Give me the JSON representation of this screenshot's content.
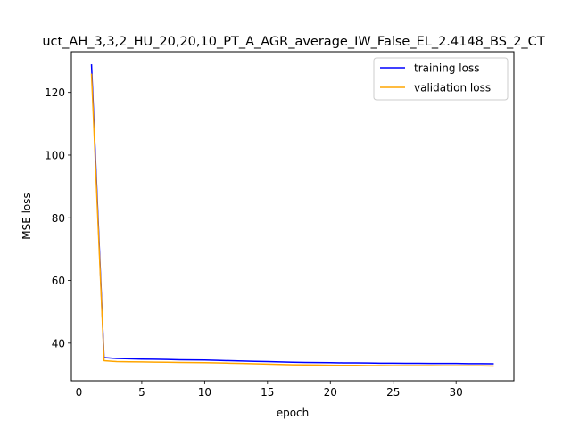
{
  "chart_data": {
    "type": "line",
    "title": "uct_AH_3,3,2_HU_20,20,10_PT_A_AGR_average_IW_False_EL_2.4148_BS_2_CT",
    "xlabel": "epoch",
    "ylabel": "MSE loss",
    "xlim": [
      -0.6,
      34.6
    ],
    "ylim": [
      28.0,
      133.0
    ],
    "xticks": [
      0,
      5,
      10,
      15,
      20,
      25,
      30
    ],
    "yticks": [
      40,
      60,
      80,
      100,
      120
    ],
    "grid": false,
    "legend_position": "top-right",
    "x": [
      1,
      2,
      3,
      4,
      5,
      6,
      7,
      8,
      9,
      10,
      11,
      12,
      13,
      14,
      15,
      16,
      17,
      18,
      19,
      20,
      21,
      22,
      23,
      24,
      25,
      26,
      27,
      28,
      29,
      30,
      31,
      32,
      33
    ],
    "series": [
      {
        "name": "training loss",
        "color": "#0000ff",
        "values": [
          129.0,
          35.4,
          35.1,
          35.0,
          34.9,
          34.85,
          34.8,
          34.7,
          34.65,
          34.6,
          34.5,
          34.4,
          34.3,
          34.2,
          34.1,
          34.0,
          33.9,
          33.85,
          33.8,
          33.75,
          33.7,
          33.7,
          33.65,
          33.6,
          33.6,
          33.55,
          33.55,
          33.5,
          33.5,
          33.5,
          33.45,
          33.45,
          33.4
        ]
      },
      {
        "name": "validation loss",
        "color": "#ffa500",
        "values": [
          126.0,
          34.4,
          34.1,
          34.05,
          34.0,
          33.95,
          33.9,
          33.85,
          33.8,
          33.75,
          33.7,
          33.6,
          33.5,
          33.4,
          33.3,
          33.2,
          33.1,
          33.05,
          33.0,
          32.95,
          32.9,
          32.9,
          32.85,
          32.85,
          32.8,
          32.8,
          32.8,
          32.8,
          32.75,
          32.75,
          32.75,
          32.75,
          32.7
        ]
      }
    ]
  }
}
